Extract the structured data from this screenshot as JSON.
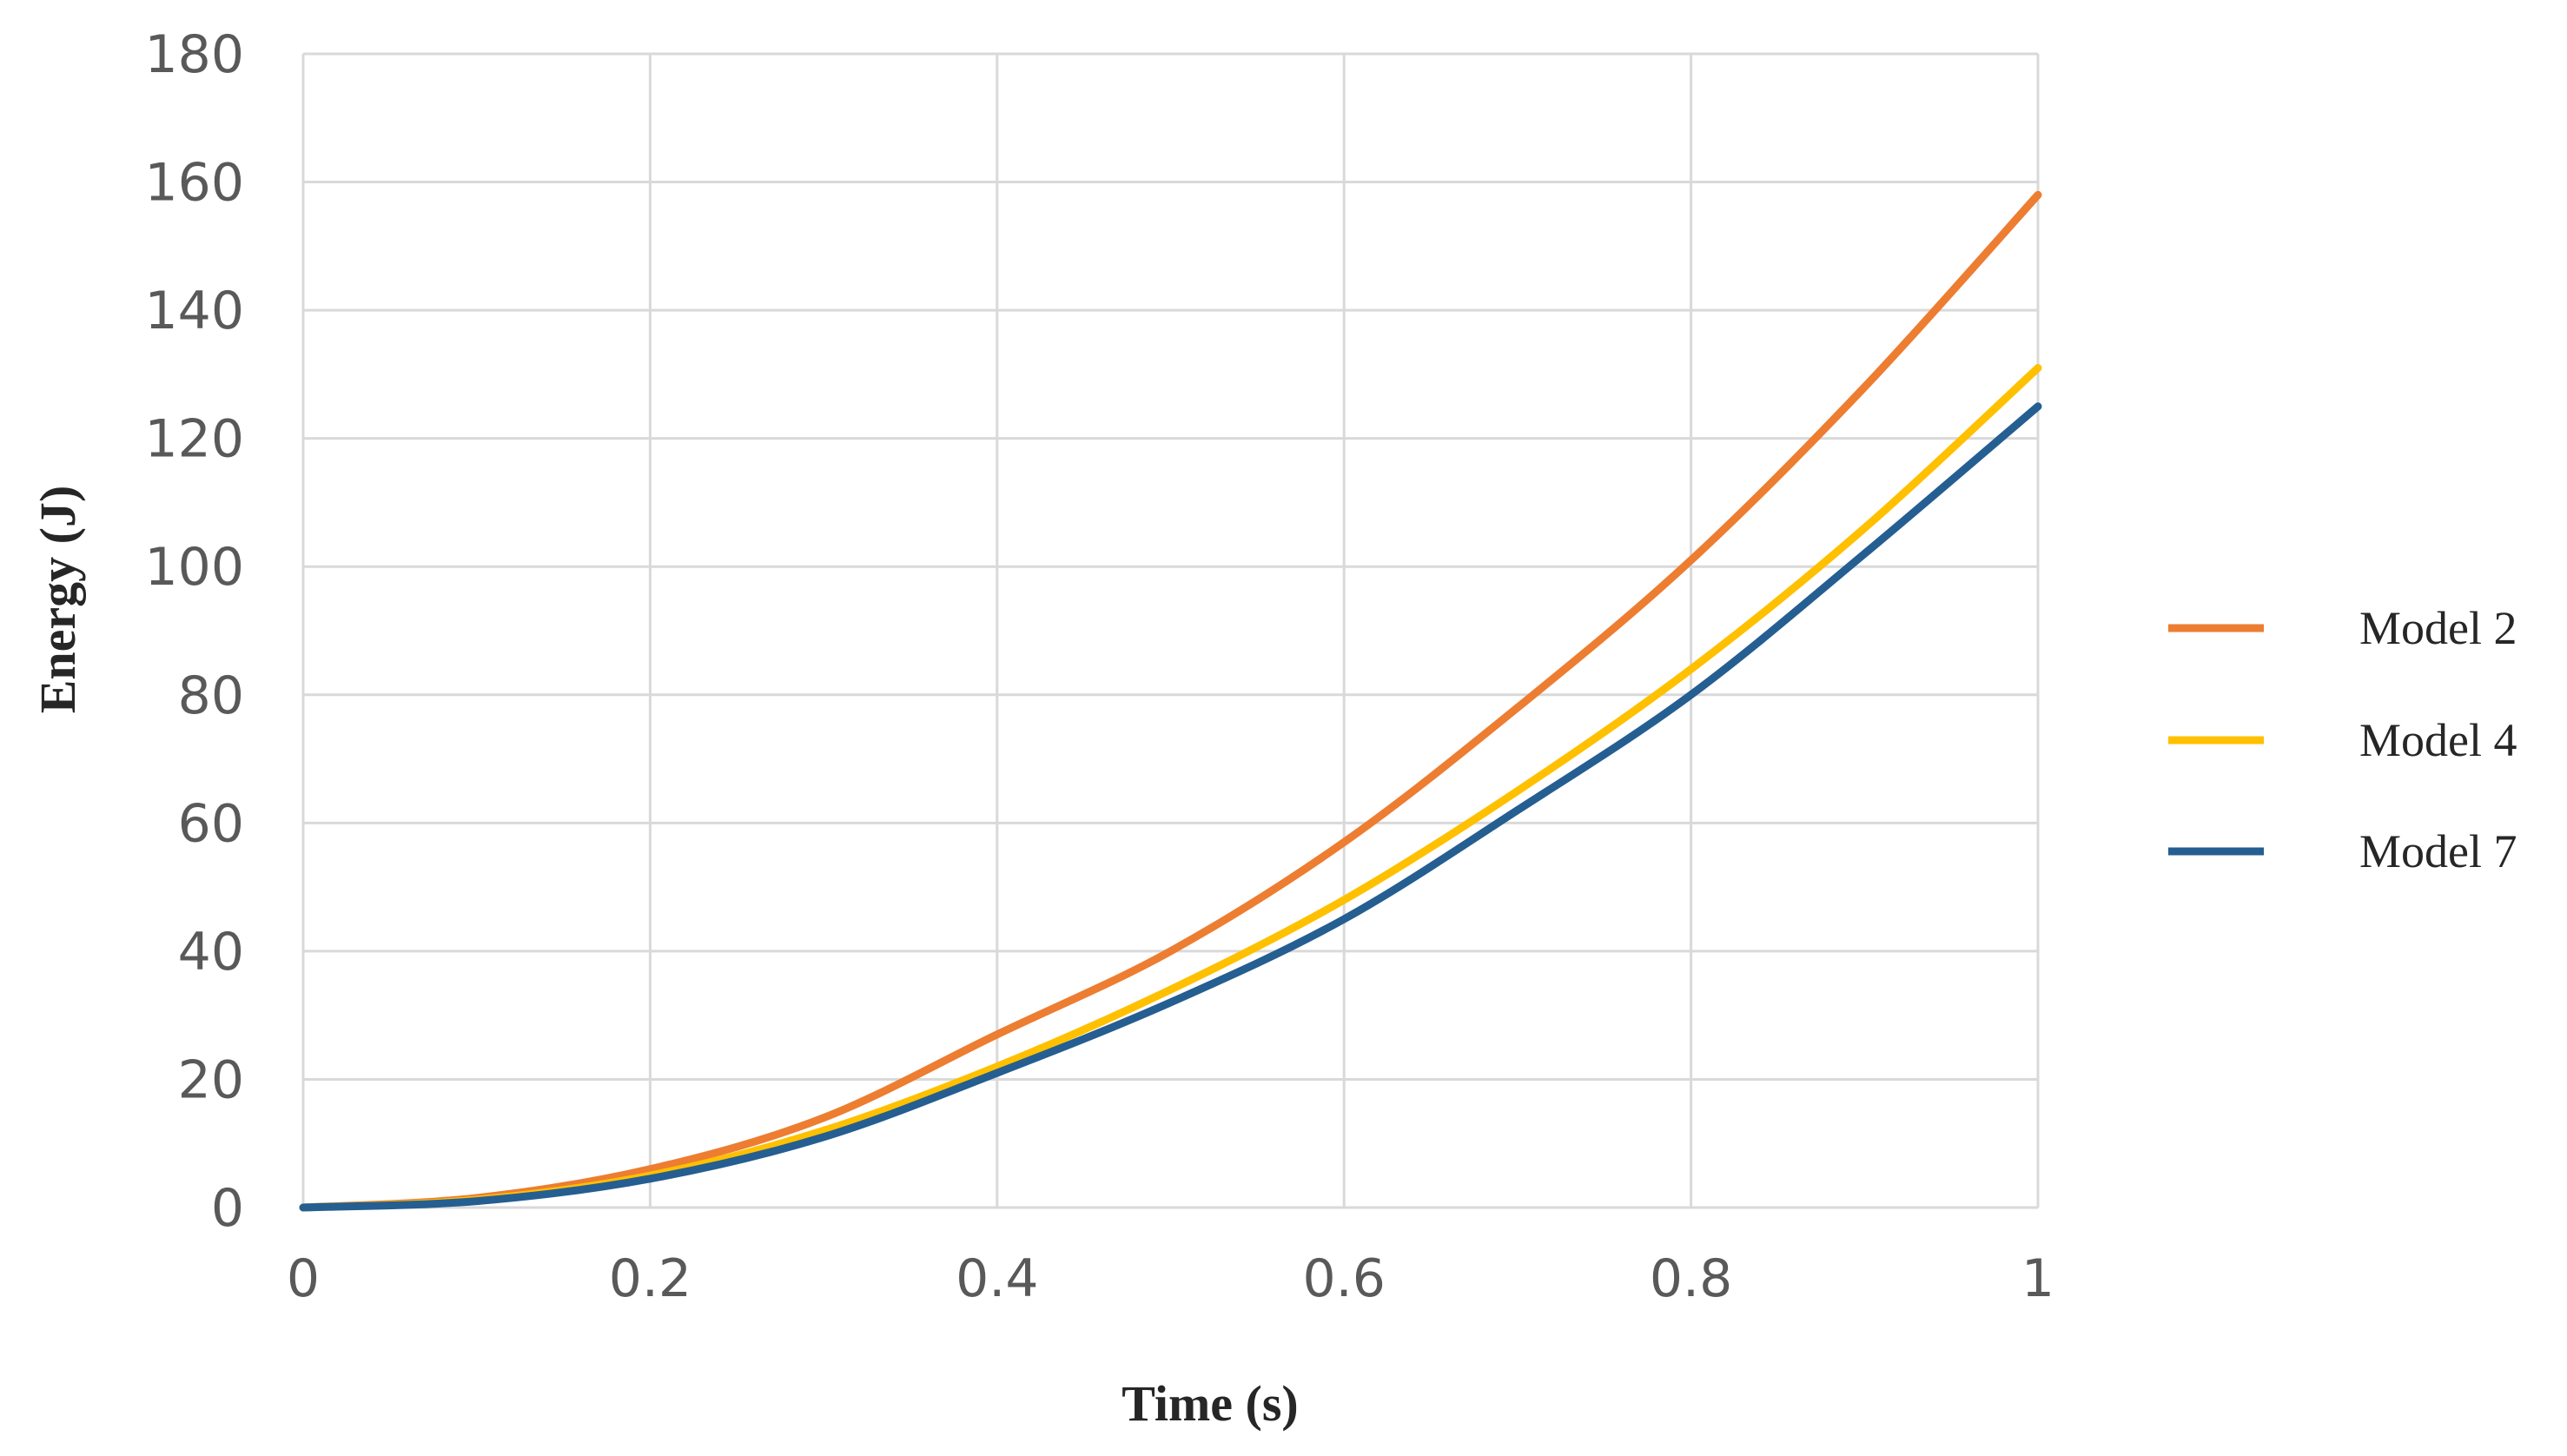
{
  "chart_data": {
    "type": "line",
    "title": "",
    "xlabel": "Time (s)",
    "ylabel": "Energy (J)",
    "xlim": [
      0,
      1
    ],
    "ylim": [
      0,
      180
    ],
    "x_ticks": [
      "0",
      "0.2",
      "0.4",
      "0.6",
      "0.8",
      "1"
    ],
    "y_ticks": [
      "0",
      "20",
      "40",
      "60",
      "80",
      "100",
      "120",
      "140",
      "160",
      "180"
    ],
    "grid": true,
    "legend_position": "right",
    "x": [
      0,
      0.1,
      0.2,
      0.3,
      0.4,
      0.5,
      0.6,
      0.7,
      0.8,
      0.9,
      1.0
    ],
    "series": [
      {
        "name": "Model 2",
        "color": "#ed7d31",
        "values": [
          0,
          1.5,
          6,
          14,
          27,
          40,
          57,
          78,
          101,
          128,
          158
        ]
      },
      {
        "name": "Model 4",
        "color": "#ffc000",
        "values": [
          0,
          1.2,
          5,
          12,
          22,
          34,
          48,
          65,
          84,
          106,
          131
        ]
      },
      {
        "name": "Model 7",
        "color": "#255e91",
        "values": [
          0,
          1.0,
          4.5,
          11,
          21,
          32,
          45,
          62,
          80,
          102,
          125
        ]
      }
    ]
  }
}
